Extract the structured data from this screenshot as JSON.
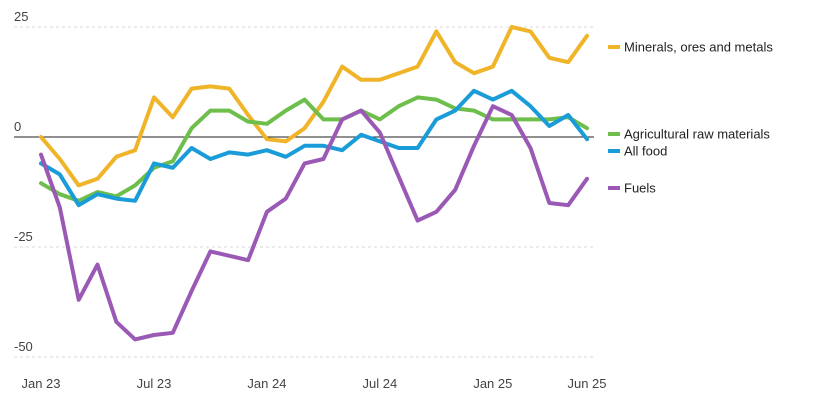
{
  "chart_data": {
    "type": "line",
    "title": "",
    "xlabel": "",
    "ylabel": "",
    "ylim": [
      -50,
      27
    ],
    "yticks": [
      25,
      0,
      -25,
      -50
    ],
    "x": [
      "Jan 23",
      "Feb 23",
      "Mar 23",
      "Apr 23",
      "May 23",
      "Jun 23",
      "Jul 23",
      "Aug 23",
      "Sep 23",
      "Oct 23",
      "Nov 23",
      "Dec 23",
      "Jan 24",
      "Feb 24",
      "Mar 24",
      "Apr 24",
      "May 24",
      "Jun 24",
      "Jul 24",
      "Aug 24",
      "Sep 24",
      "Oct 24",
      "Nov 24",
      "Dec 24",
      "Jan 25",
      "Feb 25",
      "Mar 25",
      "Apr 25",
      "May 25",
      "Jun 25"
    ],
    "xtick_labels": [
      "Jan 23",
      "Jul 23",
      "Jan 24",
      "Jul 24",
      "Jan 25",
      "Jun 25"
    ],
    "xtick_indices": [
      0,
      6,
      12,
      18,
      24,
      29
    ],
    "legend_position": "right",
    "grid": true,
    "series": [
      {
        "name": "Minerals, ores and metals",
        "color": "#F0B429",
        "values": [
          0,
          -5,
          -11,
          -9.5,
          -4.5,
          -3,
          9,
          4.5,
          11,
          11.5,
          11,
          5,
          -0.5,
          -1,
          2,
          8,
          16,
          13,
          13,
          14.5,
          16,
          24,
          17,
          14.5,
          16,
          25,
          24,
          18,
          17,
          23
        ]
      },
      {
        "name": "Agricultural raw materials",
        "color": "#6DBE4B",
        "values": [
          -10.5,
          -13,
          -14.5,
          -12.5,
          -13.5,
          -11,
          -7,
          -5.5,
          2,
          6,
          6,
          3.5,
          3,
          6,
          8.5,
          4,
          4,
          6,
          4,
          7,
          9,
          8.5,
          6.5,
          6,
          4,
          4,
          4,
          4,
          4.5,
          2
        ]
      },
      {
        "name": "All food",
        "color": "#1A9CD8",
        "values": [
          -6,
          -8.5,
          -15.5,
          -13,
          -14,
          -14.5,
          -6,
          -7,
          -2.5,
          -5,
          -3.5,
          -4,
          -3,
          -4.5,
          -2,
          -2,
          -3,
          0.5,
          -1,
          -2.5,
          -2.5,
          4,
          6,
          10.5,
          8.5,
          10.5,
          7,
          2.5,
          5,
          -0.5
        ]
      },
      {
        "name": "Fuels",
        "color": "#9B59B6",
        "values": [
          -4,
          -16,
          -37,
          -29,
          -42,
          -46,
          -45,
          -44.5,
          -35,
          -26,
          -27,
          -28,
          -17,
          -14,
          -6,
          -5,
          4,
          6,
          1,
          -9,
          -19,
          -17,
          -12,
          -2,
          7,
          5,
          -2.5,
          -15,
          -15.5,
          -9.5
        ]
      }
    ]
  }
}
